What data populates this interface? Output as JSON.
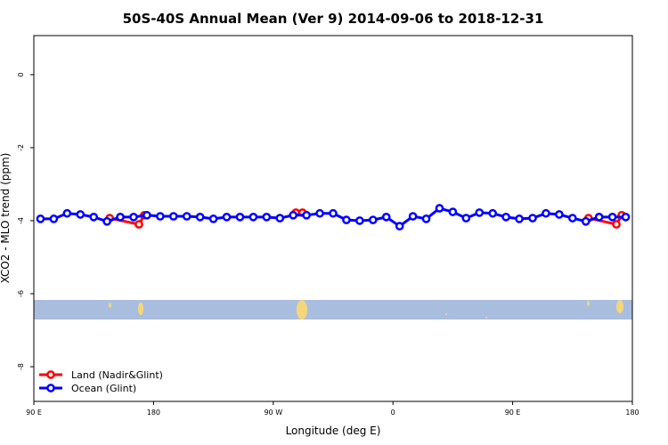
{
  "chart_data": {
    "type": "line",
    "title": "50S-40S Annual Mean (Ver 9)   2014-09-06 to 2018-12-31",
    "x_label": "Longitude (deg E)",
    "y_label": "XCO2 - MLO trend (ppm)",
    "xlim": [
      90,
      540
    ],
    "ylim": [
      -8.95,
      1.07
    ],
    "xticks": [
      {
        "value": 90,
        "label": "90 E"
      },
      {
        "value": 180,
        "label": "180"
      },
      {
        "value": 270,
        "label": "90 W"
      },
      {
        "value": 360,
        "label": "0"
      },
      {
        "value": 450,
        "label": "90 E"
      },
      {
        "value": 540,
        "label": "180"
      }
    ],
    "yticks": [
      0,
      -2,
      -4,
      -6,
      -8
    ],
    "legend": "bottom-left",
    "series": [
      {
        "name": "Land (Nadir&Glint)",
        "color": "#ff0000",
        "x": [
          147,
          169,
          173,
          230,
          287,
          292,
          400,
          507,
          528,
          532
        ],
        "values": [
          -3.93,
          -4.1,
          -3.85,
          null,
          -3.78,
          -3.78,
          null,
          -3.93,
          -4.1,
          -3.85
        ]
      },
      {
        "name": "Ocean (Glint)",
        "color": "#0000ff",
        "x": [
          95,
          105,
          115,
          125,
          135,
          145,
          155,
          165,
          175,
          185,
          195,
          205,
          215,
          225,
          235,
          245,
          255,
          265,
          275,
          285,
          295,
          305,
          315,
          325,
          335,
          345,
          355,
          365,
          375,
          385,
          395,
          405,
          415,
          425,
          435,
          445,
          455,
          465,
          475,
          485,
          495,
          505,
          515,
          525,
          535
        ],
        "values": [
          -3.95,
          -3.95,
          -3.8,
          -3.83,
          -3.9,
          -4.02,
          -3.9,
          -3.9,
          -3.85,
          -3.88,
          -3.88,
          -3.88,
          -3.9,
          -3.95,
          -3.9,
          -3.9,
          -3.9,
          -3.9,
          -3.93,
          -3.85,
          -3.85,
          -3.8,
          -3.8,
          -3.98,
          -4.0,
          -3.98,
          -3.9,
          -4.15,
          -3.88,
          -3.95,
          -3.66,
          -3.76,
          -3.93,
          -3.78,
          -3.8,
          -3.9,
          -3.95,
          -3.93,
          -3.8,
          -3.83,
          -3.93,
          -4.02,
          -3.9,
          -3.9,
          -3.9
        ]
      }
    ]
  }
}
